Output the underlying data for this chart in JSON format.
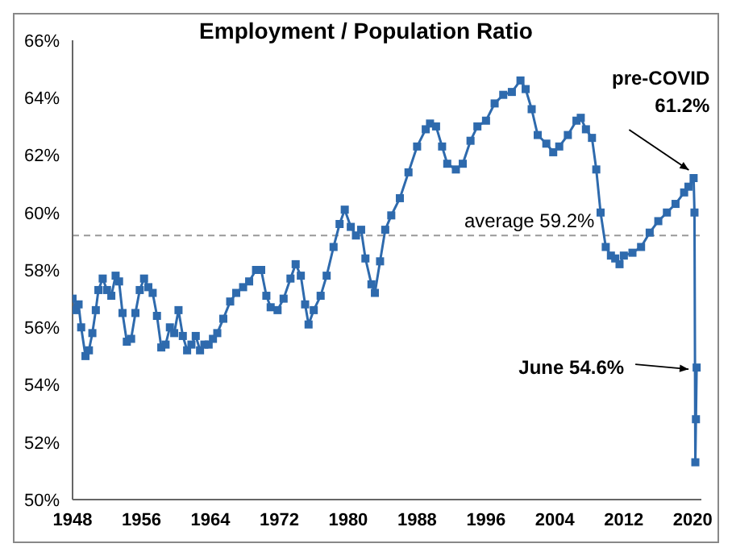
{
  "chart_data": {
    "type": "line",
    "title": "Employment / Population Ratio",
    "x": [
      1948.0,
      1948.3,
      1948.7,
      1949.0,
      1949.5,
      1949.9,
      1950.3,
      1950.7,
      1951.0,
      1951.5,
      1952.0,
      1952.5,
      1953.0,
      1953.4,
      1953.8,
      1954.3,
      1954.8,
      1955.3,
      1955.8,
      1956.3,
      1956.8,
      1957.3,
      1957.8,
      1958.3,
      1958.8,
      1959.3,
      1959.8,
      1960.3,
      1960.8,
      1961.3,
      1961.8,
      1962.3,
      1962.8,
      1963.3,
      1963.8,
      1964.3,
      1964.8,
      1965.5,
      1966.3,
      1967.0,
      1967.8,
      1968.5,
      1969.3,
      1969.9,
      1970.5,
      1971.0,
      1971.8,
      1972.5,
      1973.3,
      1973.9,
      1974.5,
      1975.0,
      1975.4,
      1976.0,
      1976.8,
      1977.5,
      1978.3,
      1979.0,
      1979.6,
      1980.3,
      1980.9,
      1981.5,
      1982.0,
      1982.7,
      1983.1,
      1983.7,
      1984.3,
      1985.0,
      1986.0,
      1987.0,
      1988.0,
      1989.0,
      1989.5,
      1990.2,
      1990.9,
      1991.5,
      1992.5,
      1993.3,
      1994.2,
      1995.0,
      1996.0,
      1997.0,
      1998.0,
      1999.0,
      2000.0,
      2000.6,
      2001.3,
      2002.0,
      2003.0,
      2003.8,
      2004.5,
      2005.5,
      2006.5,
      2007.0,
      2007.6,
      2008.3,
      2008.8,
      2009.3,
      2009.9,
      2010.5,
      2011.0,
      2011.5,
      2012.0,
      2013.0,
      2014.0,
      2015.0,
      2016.0,
      2017.0,
      2018.0,
      2019.0,
      2019.5,
      2020.1,
      2020.2,
      2020.3,
      2020.37,
      2020.45
    ],
    "series": [
      {
        "color": "#2e6aad",
        "values": [
          57.0,
          56.6,
          56.8,
          56.0,
          55.0,
          55.2,
          55.8,
          56.6,
          57.3,
          57.7,
          57.3,
          57.1,
          57.8,
          57.6,
          56.5,
          55.5,
          55.6,
          56.5,
          57.3,
          57.7,
          57.4,
          57.2,
          56.4,
          55.3,
          55.4,
          56.0,
          55.8,
          56.6,
          55.7,
          55.2,
          55.4,
          55.7,
          55.2,
          55.4,
          55.4,
          55.6,
          55.8,
          56.3,
          56.9,
          57.2,
          57.4,
          57.6,
          58.0,
          58.0,
          57.1,
          56.7,
          56.6,
          57.0,
          57.7,
          58.2,
          57.8,
          56.8,
          56.1,
          56.6,
          57.1,
          57.8,
          58.8,
          59.6,
          60.1,
          59.5,
          59.2,
          59.4,
          58.4,
          57.5,
          57.2,
          58.3,
          59.4,
          59.9,
          60.5,
          61.4,
          62.3,
          62.9,
          63.1,
          63.0,
          62.3,
          61.7,
          61.5,
          61.7,
          62.5,
          63.0,
          63.2,
          63.8,
          64.1,
          64.2,
          64.6,
          64.3,
          63.6,
          62.7,
          62.4,
          62.1,
          62.3,
          62.7,
          63.2,
          63.3,
          62.9,
          62.6,
          61.5,
          60.0,
          58.8,
          58.5,
          58.4,
          58.2,
          58.5,
          58.6,
          58.8,
          59.3,
          59.7,
          60.0,
          60.3,
          60.7,
          60.9,
          61.2,
          60.0,
          51.3,
          52.8,
          54.6
        ]
      }
    ],
    "xlim": [
      1948,
      2021
    ],
    "xticks": [
      1948,
      1956,
      1964,
      1972,
      1980,
      1988,
      1996,
      2004,
      2012,
      2020
    ],
    "ylim": [
      50,
      66
    ],
    "yticks": [
      {
        "value": 50,
        "label": "50%"
      },
      {
        "value": 52,
        "label": "52%"
      },
      {
        "value": 54,
        "label": "54%"
      },
      {
        "value": 56,
        "label": "56%"
      },
      {
        "value": 58,
        "label": "58%"
      },
      {
        "value": 60,
        "label": "60%"
      },
      {
        "value": 62,
        "label": "62%"
      },
      {
        "value": 64,
        "label": "64%"
      },
      {
        "value": 66,
        "label": "66%"
      }
    ],
    "ref_lines": [
      {
        "axis": "y",
        "value": 59.2,
        "label": "average 59.2%",
        "color": "#999999",
        "line_style": "dashed"
      }
    ],
    "annotations": [
      {
        "text": "pre-COVID\n61.2%",
        "x": 2020.1,
        "y": 61.2
      },
      {
        "text": "June 54.6%",
        "x": 2020.45,
        "y": 54.6
      }
    ],
    "marker": "square",
    "grid": false
  }
}
